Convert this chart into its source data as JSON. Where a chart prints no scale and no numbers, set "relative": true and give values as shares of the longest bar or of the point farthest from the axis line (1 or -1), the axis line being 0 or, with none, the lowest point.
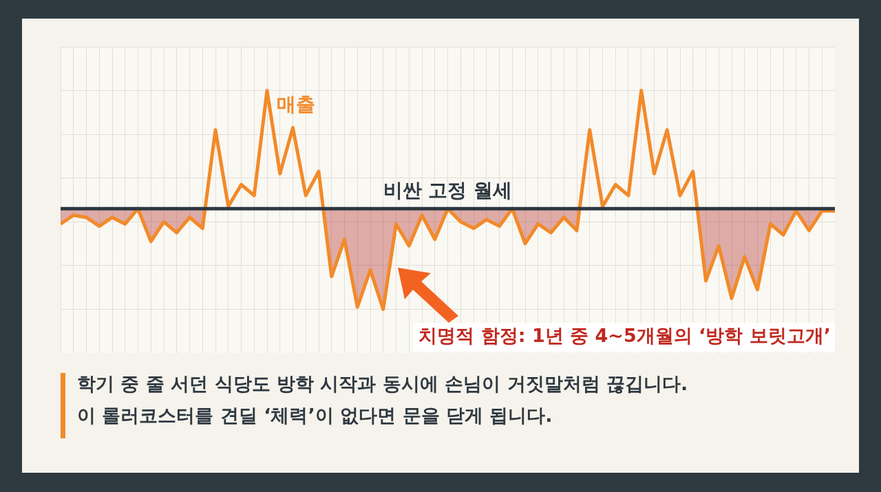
{
  "chart_data": {
    "type": "line",
    "relative": true,
    "grid": true,
    "legend": false,
    "marker": "none",
    "line_style": "solid",
    "categories": [
      null,
      null,
      null,
      null,
      null,
      null,
      null,
      null,
      null,
      null,
      null,
      null,
      null,
      null,
      null,
      null,
      null,
      null,
      null,
      null,
      null,
      null,
      null,
      null,
      null,
      null,
      null,
      null,
      null,
      null,
      null,
      null,
      null,
      null,
      null,
      null,
      null,
      null,
      null,
      null,
      null,
      null,
      null,
      null,
      null,
      null,
      null,
      null,
      null,
      null,
      null,
      null,
      null,
      null,
      null,
      null,
      null,
      null,
      null,
      null,
      null
    ],
    "series": [
      {
        "name": "매출",
        "color": "#f28a2a",
        "values": [
          0.39,
          0.43,
          0.42,
          0.38,
          0.42,
          0.39,
          0.46,
          0.31,
          0.4,
          0.35,
          0.42,
          0.37,
          0.82,
          0.47,
          0.57,
          0.52,
          1,
          0.62,
          0.83,
          0.52,
          0.63,
          0.15,
          0.32,
          0.01,
          0.18,
          0,
          0.39,
          0.29,
          0.43,
          0.32,
          0.46,
          0.4,
          0.37,
          0.41,
          0.38,
          0.46,
          0.3,
          0.39,
          0.35,
          0.42,
          0.36,
          0.82,
          0.47,
          0.57,
          0.52,
          1,
          0.62,
          0.82,
          0.52,
          0.63,
          0.13,
          0.29,
          0.05,
          0.24,
          0.09,
          0.39,
          0.34,
          0.45,
          0.36,
          0.45,
          0.45
        ]
      }
    ],
    "ref_lines": [
      {
        "axis": "y",
        "value": 0.46,
        "label": "비싼 고정 월세",
        "color": "#2e3840"
      }
    ],
    "annotations": [
      "치명적 함정: 1년 중 4~5개월의 ‘방학 보릿고개’",
      "학기 중 줄 서던 식당도 방학 시작과 동시에 손님이 거짓말처럼 끊깁니다.",
      "이 롤러코스터를 견딜 ‘체력’이 없다면 문을 닫게 됩니다."
    ]
  }
}
